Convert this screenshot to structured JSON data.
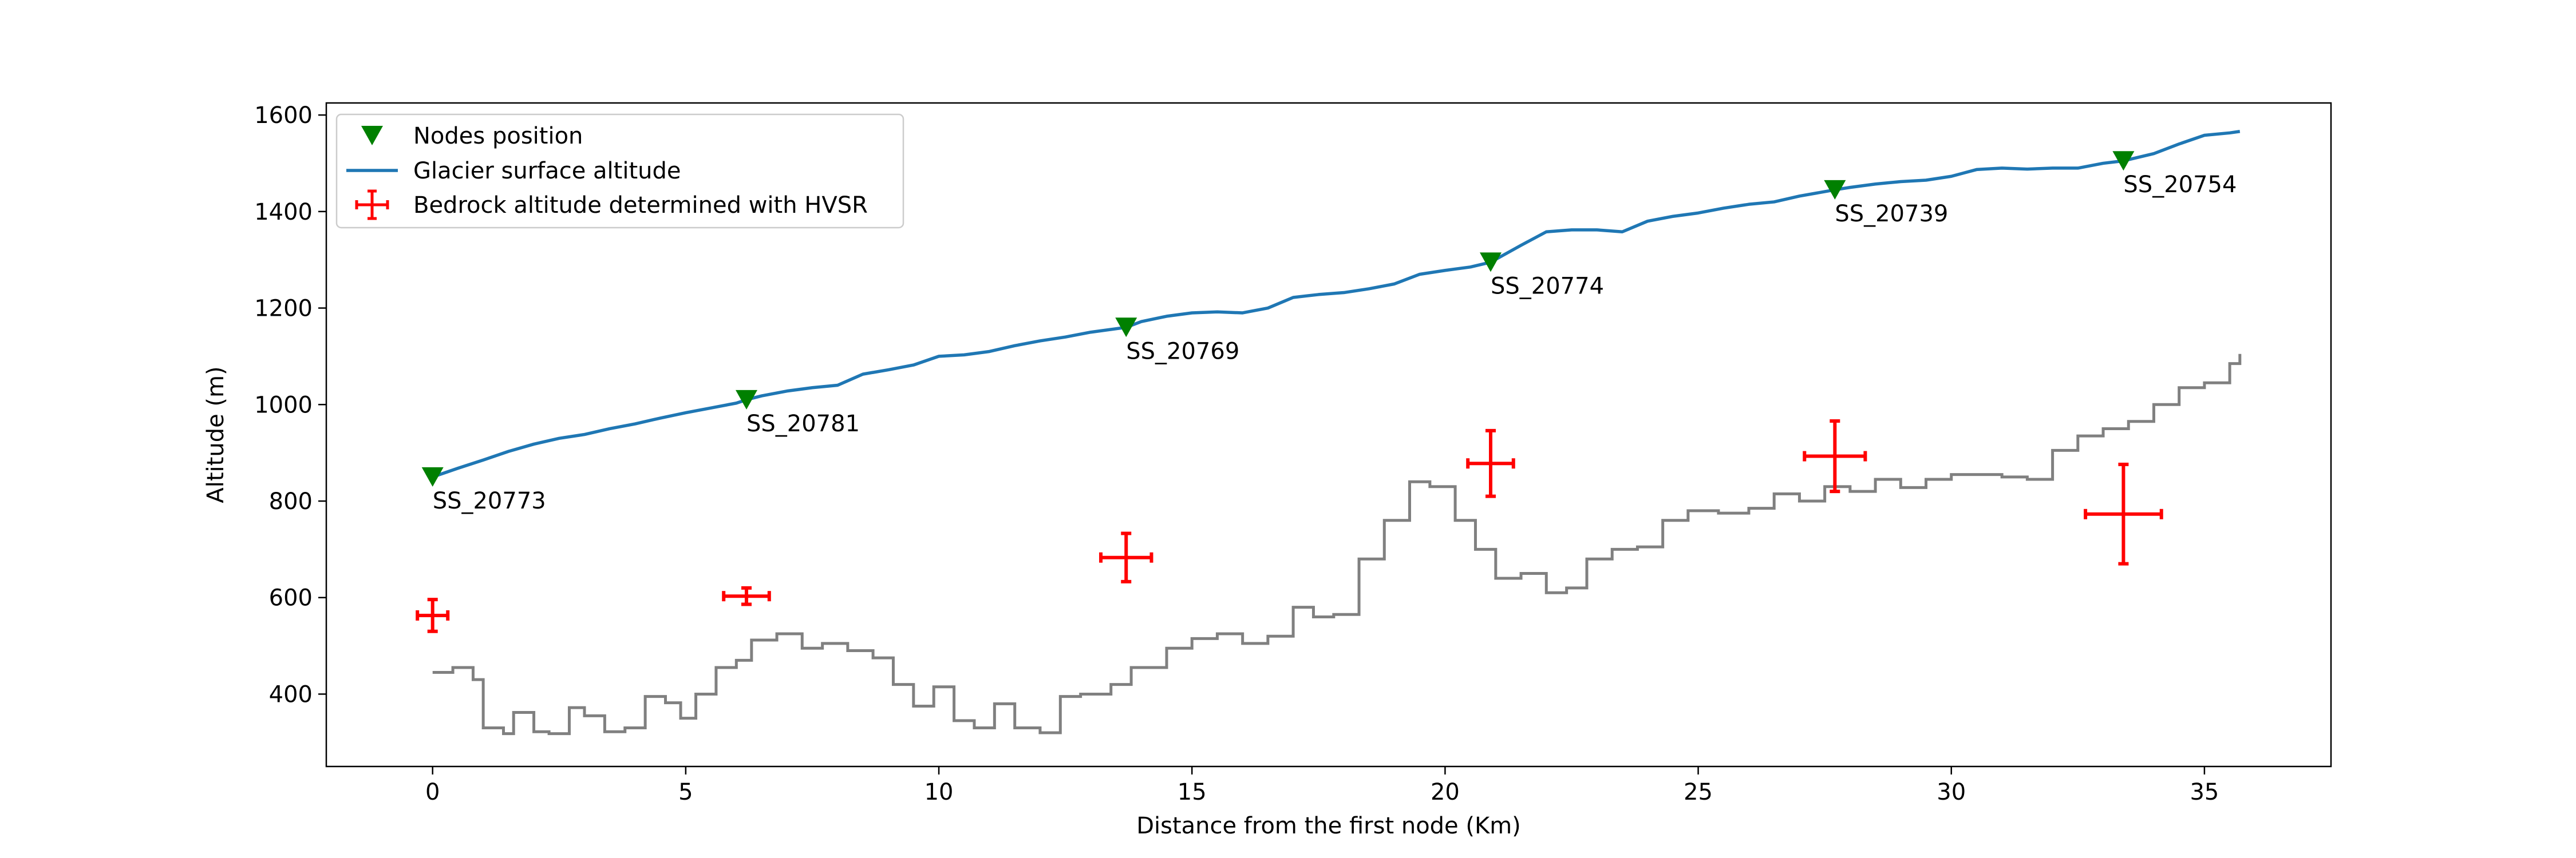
{
  "chart_data": {
    "type": "line",
    "title": "",
    "xlabel": "Distance from the first node (Km)",
    "ylabel": "Altitude (m)",
    "xlim": [
      -2.1,
      37.5
    ],
    "ylim": [
      250,
      1625
    ],
    "xticks": [
      0,
      5,
      10,
      15,
      20,
      25,
      30,
      35
    ],
    "yticks": [
      400,
      600,
      800,
      1000,
      1200,
      1400,
      1600
    ],
    "grid": false,
    "legend_position": "top-left",
    "legend": [
      {
        "label": "Nodes position",
        "color": "#008000",
        "marker": "triangle-down"
      },
      {
        "label": "Glacier surface altitude",
        "color": "#1f77b4",
        "marker": "line"
      },
      {
        "label": "Bedrock altitude determined with HVSR",
        "color": "#ff0000",
        "marker": "errorbar"
      }
    ],
    "nodes": [
      {
        "name": "SS_20773",
        "x": 0.0,
        "y": 850
      },
      {
        "name": "SS_20781",
        "x": 6.2,
        "y": 1010
      },
      {
        "name": "SS_20769",
        "x": 13.7,
        "y": 1160
      },
      {
        "name": "SS_20774",
        "x": 20.9,
        "y": 1295
      },
      {
        "name": "SS_20739",
        "x": 27.7,
        "y": 1445
      },
      {
        "name": "SS_20754",
        "x": 33.4,
        "y": 1505
      }
    ],
    "surface": {
      "color": "#1f77b4",
      "x": [
        0,
        0.5,
        1,
        1.5,
        2,
        2.5,
        3,
        3.5,
        4,
        4.5,
        5,
        5.5,
        6,
        6.2,
        6.5,
        7,
        7.5,
        8,
        8.5,
        9,
        9.5,
        10,
        10.5,
        11,
        11.5,
        12,
        12.5,
        13,
        13.7,
        14,
        14.5,
        15,
        15.5,
        16,
        16.5,
        17,
        17.5,
        18,
        18.5,
        19,
        19.5,
        20,
        20.5,
        20.9,
        21.5,
        22,
        22.5,
        23,
        23.5,
        24,
        24.5,
        25,
        25.5,
        26,
        26.5,
        27,
        27.7,
        28,
        28.5,
        29,
        29.5,
        30,
        30.5,
        31,
        31.5,
        32,
        32.5,
        33,
        33.4,
        34,
        34.5,
        35,
        35.5,
        35.7
      ],
      "y": [
        850,
        868,
        885,
        903,
        918,
        930,
        938,
        950,
        960,
        972,
        983,
        993,
        1003,
        1010,
        1018,
        1028,
        1035,
        1040,
        1063,
        1072,
        1082,
        1100,
        1103,
        1110,
        1122,
        1132,
        1140,
        1150,
        1160,
        1172,
        1183,
        1190,
        1192,
        1190,
        1200,
        1222,
        1228,
        1232,
        1240,
        1250,
        1270,
        1278,
        1285,
        1295,
        1330,
        1358,
        1362,
        1362,
        1358,
        1380,
        1390,
        1397,
        1407,
        1415,
        1420,
        1432,
        1445,
        1450,
        1457,
        1462,
        1465,
        1473,
        1487,
        1490,
        1488,
        1490,
        1490,
        1500,
        1505,
        1520,
        1540,
        1558,
        1563,
        1566
      ]
    },
    "bedrock": {
      "color": "#808080",
      "x": [
        0,
        0.4,
        0.8,
        1.0,
        1.4,
        1.6,
        2.0,
        2.3,
        2.7,
        3.0,
        3.4,
        3.8,
        4.2,
        4.6,
        4.9,
        5.2,
        5.6,
        6.0,
        6.3,
        6.8,
        7.3,
        7.7,
        8.2,
        8.7,
        9.1,
        9.5,
        9.9,
        10.3,
        10.7,
        11.1,
        11.5,
        12.0,
        12.4,
        12.8,
        13.4,
        13.8,
        14.5,
        15.0,
        15.5,
        16.0,
        16.5,
        17.0,
        17.4,
        17.8,
        18.3,
        18.8,
        19.3,
        19.7,
        20.2,
        20.6,
        21.0,
        21.5,
        22.0,
        22.4,
        22.8,
        23.3,
        23.8,
        24.3,
        24.8,
        25.4,
        26.0,
        26.5,
        27.0,
        27.5,
        28.0,
        28.5,
        29.0,
        29.5,
        30.0,
        30.5,
        31.0,
        31.5,
        32.0,
        32.5,
        33.0,
        33.5,
        34.0,
        34.5,
        35.0,
        35.5,
        35.7
      ],
      "y": [
        445,
        455,
        430,
        330,
        318,
        362,
        322,
        318,
        372,
        355,
        322,
        330,
        395,
        382,
        350,
        400,
        455,
        470,
        512,
        525,
        495,
        505,
        490,
        475,
        420,
        375,
        415,
        345,
        330,
        380,
        330,
        320,
        395,
        400,
        420,
        455,
        495,
        515,
        525,
        505,
        520,
        580,
        560,
        565,
        680,
        760,
        840,
        830,
        760,
        700,
        640,
        650,
        610,
        620,
        680,
        700,
        705,
        760,
        780,
        775,
        785,
        815,
        800,
        830,
        820,
        845,
        828,
        845,
        855,
        855,
        850,
        845,
        905,
        935,
        950,
        965,
        1000,
        1035,
        1045,
        1085,
        1105
      ]
    },
    "hvsr": [
      {
        "x": 0.0,
        "y": 563,
        "xerr": 0.3,
        "yerr": 33
      },
      {
        "x": 6.2,
        "y": 603,
        "xerr": 0.45,
        "yerr": 17
      },
      {
        "x": 13.7,
        "y": 683,
        "xerr": 0.5,
        "yerr": 50
      },
      {
        "x": 20.9,
        "y": 878,
        "xerr": 0.45,
        "yerr": 68
      },
      {
        "x": 27.7,
        "y": 893,
        "xerr": 0.6,
        "yerr": 73
      },
      {
        "x": 33.4,
        "y": 773,
        "xerr": 0.75,
        "yerr": 103
      }
    ]
  }
}
